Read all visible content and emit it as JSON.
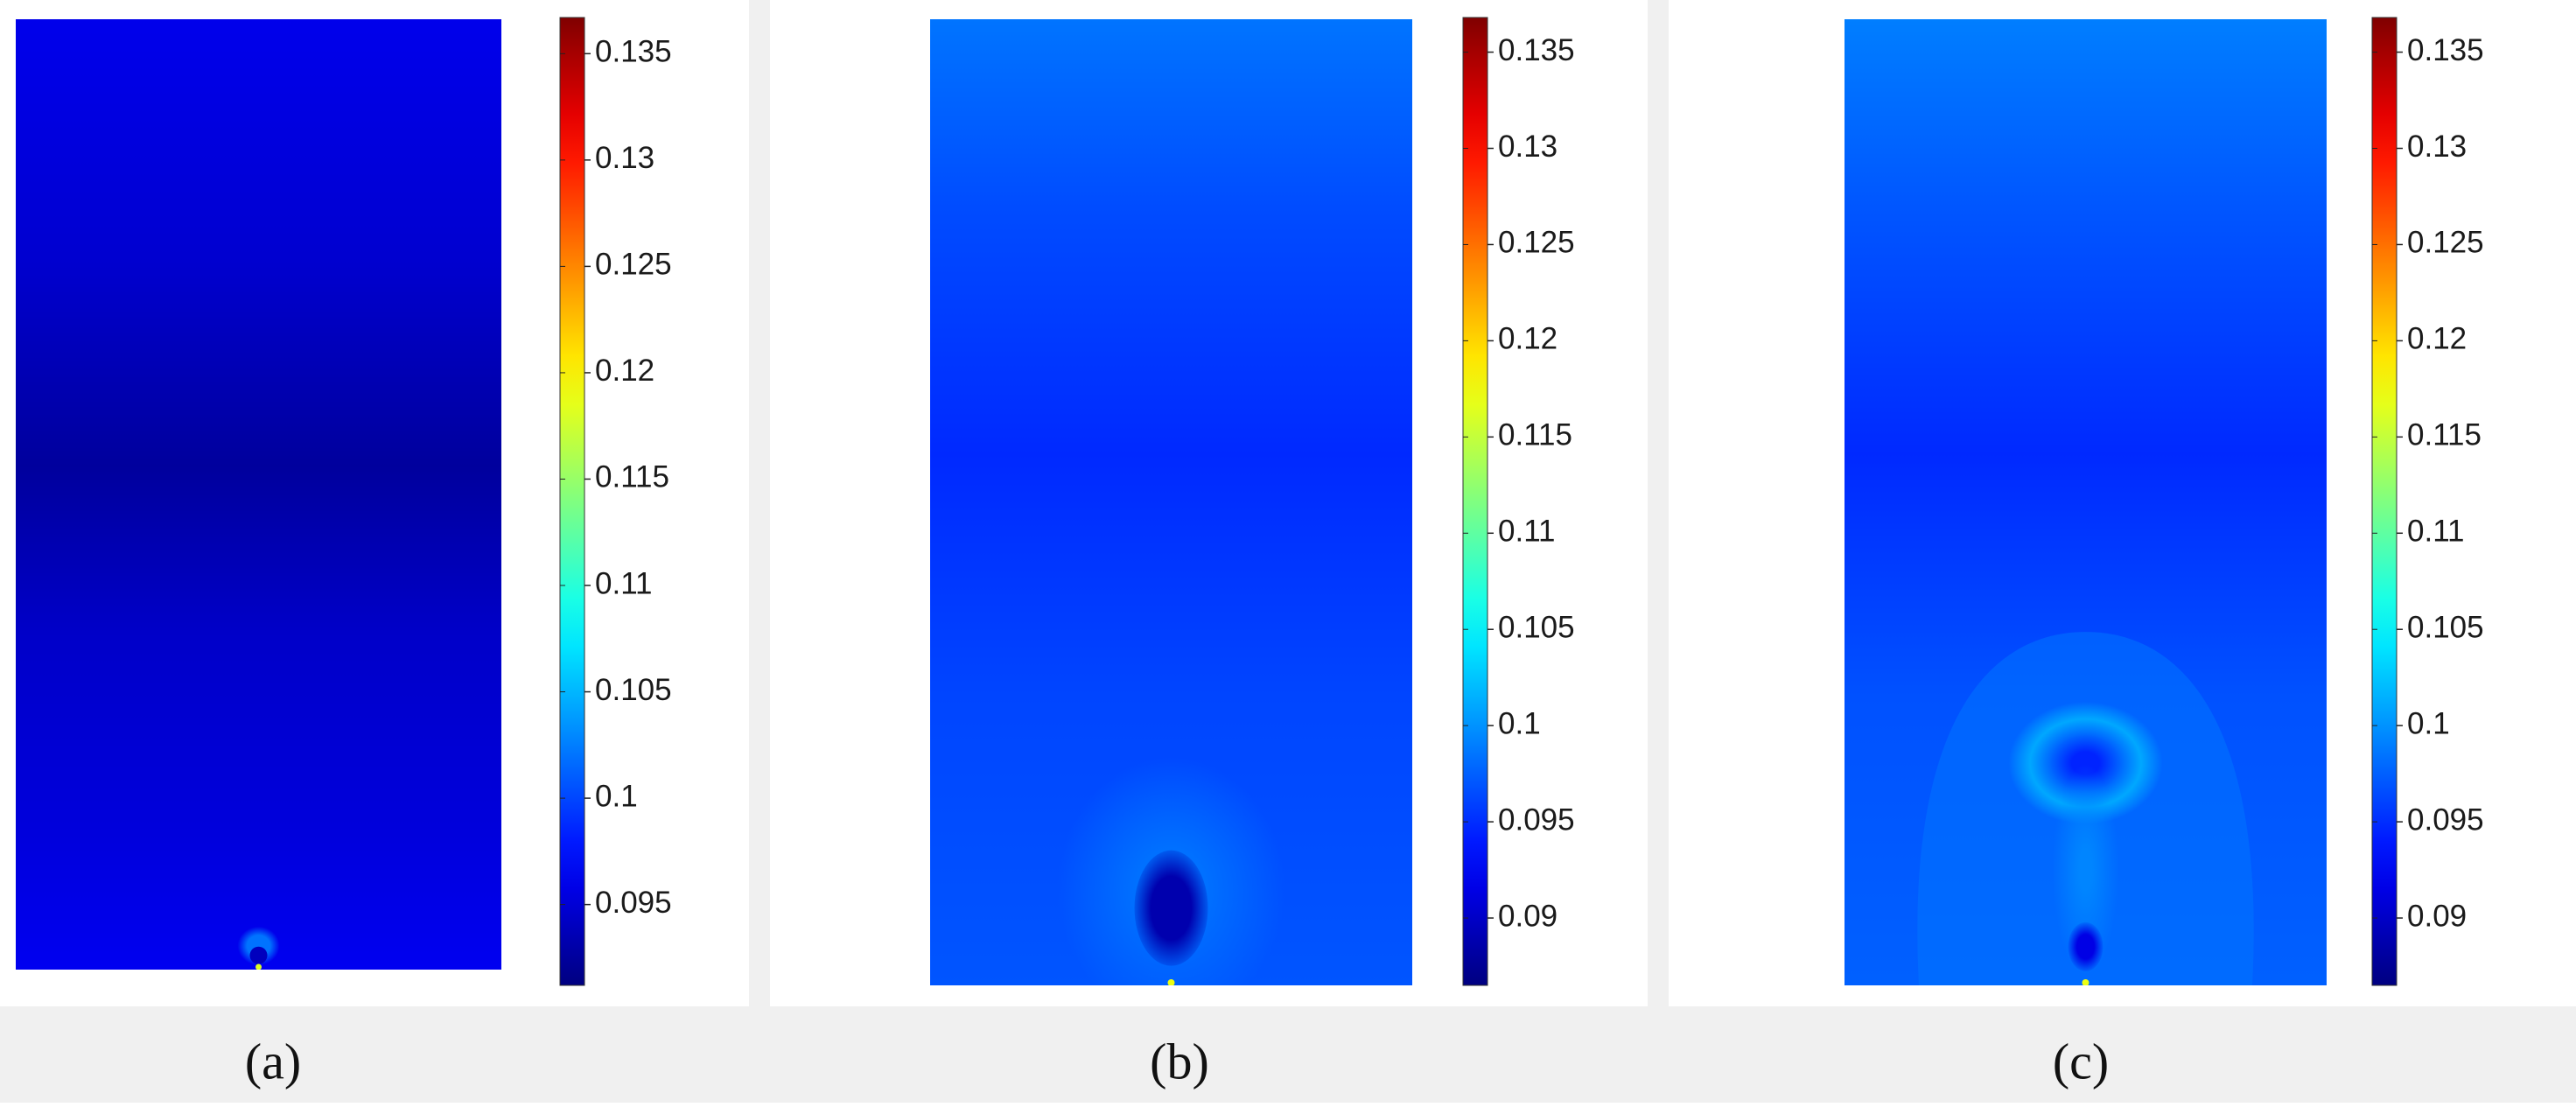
{
  "figure": {
    "caption_strip_color": "#f0f0f0",
    "panel_background": "#ffffff"
  },
  "chart_data": [
    {
      "type": "heatmap",
      "panel_label": "(a)",
      "colormap": "jet",
      "colorbar": {
        "range": [
          0.0912,
          0.1367
        ],
        "ticks": [
          0.095,
          0.1,
          0.105,
          0.11,
          0.115,
          0.12,
          0.125,
          0.13,
          0.135
        ],
        "tick_labels": [
          "0.095",
          "0.1",
          "0.105",
          "0.11",
          "0.115",
          "0.12",
          "0.125",
          "0.13",
          "0.135"
        ]
      },
      "field": {
        "background_profile": [
          {
            "depth": 0.0,
            "value": 0.096
          },
          {
            "depth": 0.25,
            "value": 0.0948
          },
          {
            "depth": 0.47,
            "value": 0.0925
          },
          {
            "depth": 0.65,
            "value": 0.0945
          },
          {
            "depth": 0.85,
            "value": 0.0953
          },
          {
            "depth": 1.0,
            "value": 0.0962
          }
        ],
        "features": [
          {
            "kind": "ring",
            "depth": 0.975,
            "value": 0.102
          },
          {
            "kind": "core",
            "depth": 0.985,
            "value": 0.094
          },
          {
            "kind": "source",
            "depth": 1.0,
            "value": 0.118
          }
        ]
      }
    },
    {
      "type": "heatmap",
      "panel_label": "(b)",
      "colormap": "jet",
      "colorbar": {
        "range": [
          0.0865,
          0.1368
        ],
        "ticks": [
          0.09,
          0.095,
          0.1,
          0.105,
          0.11,
          0.115,
          0.12,
          0.125,
          0.13,
          0.135
        ],
        "tick_labels": [
          "0.09",
          "0.095",
          "0.1",
          "0.105",
          "0.11",
          "0.115",
          "0.12",
          "0.125",
          "0.13",
          "0.135"
        ]
      },
      "field": {
        "background_profile": [
          {
            "depth": 0.0,
            "value": 0.0985
          },
          {
            "depth": 0.2,
            "value": 0.0965
          },
          {
            "depth": 0.45,
            "value": 0.0948
          },
          {
            "depth": 0.7,
            "value": 0.0962
          },
          {
            "depth": 1.0,
            "value": 0.097
          }
        ],
        "features": [
          {
            "kind": "halo",
            "depth": 0.9,
            "value": 0.0985
          },
          {
            "kind": "plume-core",
            "depth": 0.92,
            "value": 0.0888
          },
          {
            "kind": "source",
            "depth": 1.0,
            "value": 0.117
          }
        ]
      }
    },
    {
      "type": "heatmap",
      "panel_label": "(c)",
      "colormap": "jet",
      "colorbar": {
        "range": [
          0.0865,
          0.1368
        ],
        "ticks": [
          0.09,
          0.095,
          0.1,
          0.105,
          0.11,
          0.115,
          0.12,
          0.125,
          0.13,
          0.135
        ],
        "tick_labels": [
          "0.09",
          "0.095",
          "0.1",
          "0.105",
          "0.11",
          "0.115",
          "0.12",
          "0.125",
          "0.13",
          "0.135"
        ]
      },
      "field": {
        "background_profile": [
          {
            "depth": 0.0,
            "value": 0.099
          },
          {
            "depth": 0.2,
            "value": 0.097
          },
          {
            "depth": 0.45,
            "value": 0.0948
          },
          {
            "depth": 0.7,
            "value": 0.0968
          },
          {
            "depth": 1.0,
            "value": 0.0975
          }
        ],
        "features": [
          {
            "kind": "bell-halo",
            "depth": 0.75,
            "value": 0.0985
          },
          {
            "kind": "ring",
            "depth": 0.77,
            "value": 0.1012
          },
          {
            "kind": "ring-core",
            "depth": 0.77,
            "value": 0.0945
          },
          {
            "kind": "stem",
            "depth": 0.88,
            "value": 0.0995
          },
          {
            "kind": "core",
            "depth": 0.96,
            "value": 0.0915
          },
          {
            "kind": "source",
            "depth": 1.0,
            "value": 0.117
          }
        ]
      }
    }
  ]
}
